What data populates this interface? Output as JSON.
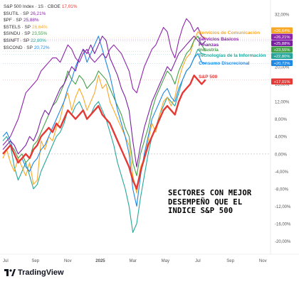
{
  "legend": [
    {
      "label": "S&P 500 Index · 1S · CBOE",
      "value": "17,01%",
      "color": "#e53935"
    },
    {
      "label": "$SUTIL · SP",
      "value": "26,21%",
      "color": "#8e24aa"
    },
    {
      "label": "$PF · SP",
      "value": "25,88%",
      "color": "#7b1fa2"
    },
    {
      "label": "$STELS · SP",
      "value": "26,64%",
      "color": "#f9a825"
    },
    {
      "label": "$SINDU · SP",
      "value": "23,55%",
      "color": "#43a047"
    },
    {
      "label": "$SINFT · SP",
      "value": "22,80%",
      "color": "#26a69a"
    },
    {
      "label": "$SCOND · SP",
      "value": "20,72%",
      "color": "#1e88e5"
    }
  ],
  "annotation": [
    "SECTORES CON MEJOR",
    "DESEMPEÑO QUE EL",
    "INDICE S&P 500"
  ],
  "brand": "TradingView",
  "chart_data": {
    "type": "line",
    "x_ticks": [
      "Jul",
      "Sep",
      "Nov",
      "2025",
      "Mar",
      "May",
      "Jul",
      "Sep",
      "Nov"
    ],
    "y_ticks": [
      "32,00%",
      "28,00%",
      "24,00%",
      "20,00%",
      "16,00%",
      "12,00%",
      "8,00%",
      "4,00%",
      "0,00%",
      "-4,00%",
      "-8,00%",
      "-12,00%",
      "-16,00%",
      "-20,00%"
    ],
    "ylim": [
      -22,
      33
    ],
    "xlim": [
      0,
      70
    ],
    "x_tick_positions": [
      0,
      8.5,
      17,
      25.5,
      34,
      42.5,
      51,
      59.5,
      68
    ],
    "series": [
      {
        "name": "Servicios de Comunicación",
        "badge": "+26,64%",
        "color": "#f9a825",
        "x": [
          0,
          1,
          2,
          3,
          4,
          5,
          6,
          7,
          8,
          9,
          10,
          11,
          12,
          13,
          14,
          15,
          16,
          17,
          18,
          19,
          20,
          21,
          22,
          23,
          24,
          25,
          26,
          27,
          28,
          29,
          30,
          31,
          32,
          33,
          34,
          35,
          36,
          37,
          38,
          39,
          40,
          41,
          42,
          43,
          44,
          45,
          46,
          47,
          48,
          49,
          50,
          51,
          52,
          53
        ],
        "y": [
          -1,
          1,
          -2,
          -4,
          -1,
          -3,
          -5,
          -2,
          -7,
          -6,
          3,
          1,
          4,
          3,
          6,
          8,
          12,
          14,
          10,
          13,
          15,
          13,
          10,
          12,
          14,
          18,
          15,
          16,
          12,
          10,
          8,
          6,
          4,
          2,
          -5,
          -9,
          -3,
          -1,
          3,
          7,
          5,
          9,
          12,
          13,
          11,
          13,
          17,
          20,
          22,
          23,
          26,
          28,
          27,
          26.64
        ]
      },
      {
        "name": "Servicios Básicos",
        "badge": "+26,21%",
        "color": "#8e24aa",
        "x": [
          0,
          1,
          2,
          3,
          4,
          5,
          6,
          7,
          8,
          9,
          10,
          11,
          12,
          13,
          14,
          15,
          16,
          17,
          18,
          19,
          20,
          21,
          22,
          23,
          24,
          25,
          26,
          27,
          28,
          29,
          30,
          31,
          32,
          33,
          34,
          35,
          36,
          37,
          38,
          39,
          40,
          41,
          42,
          43,
          44,
          45,
          46,
          47,
          48,
          49,
          50,
          51,
          52,
          53
        ],
        "y": [
          2,
          3,
          4,
          6,
          8,
          11,
          14,
          15,
          16,
          17,
          19,
          20,
          21,
          22,
          22,
          21,
          23,
          25,
          24,
          22,
          21,
          23,
          24,
          22,
          21,
          22,
          23,
          22,
          24,
          25,
          24,
          23,
          21,
          19,
          15,
          14,
          17,
          20,
          22,
          24,
          25,
          27,
          29,
          28,
          24,
          22,
          26,
          29,
          31,
          30,
          28,
          29,
          27,
          26.21
        ]
      },
      {
        "name": "Finanzas",
        "badge": "+25,88%",
        "color": "#7b1fa2",
        "x": [
          0,
          1,
          2,
          3,
          4,
          5,
          6,
          7,
          8,
          9,
          10,
          11,
          12,
          13,
          14,
          15,
          16,
          17,
          18,
          19,
          20,
          21,
          22,
          23,
          24,
          25,
          26,
          27,
          28,
          29,
          30,
          31,
          32,
          33,
          34,
          35,
          36,
          37,
          38,
          39,
          40,
          41,
          42,
          43,
          44,
          45,
          46,
          47,
          48,
          49,
          50,
          51,
          52,
          53
        ],
        "y": [
          1,
          2,
          3,
          2,
          0,
          1,
          2,
          4,
          3,
          5,
          8,
          10,
          9,
          11,
          13,
          15,
          16,
          18,
          20,
          19,
          22,
          24,
          23,
          25,
          23,
          25,
          27,
          26,
          22,
          20,
          18,
          15,
          13,
          10,
          3,
          -3,
          2,
          6,
          9,
          12,
          14,
          16,
          18,
          20,
          19,
          21,
          23,
          24,
          25,
          26,
          27,
          26,
          25,
          25.88
        ]
      },
      {
        "name": "Industria",
        "badge": "+23,55%",
        "color": "#43a047",
        "x": [
          0,
          1,
          2,
          3,
          4,
          5,
          6,
          7,
          8,
          9,
          10,
          11,
          12,
          13,
          14,
          15,
          16,
          17,
          18,
          19,
          20,
          21,
          22,
          23,
          24,
          25,
          26,
          27,
          28,
          29,
          30,
          31,
          32,
          33,
          34,
          35,
          36,
          37,
          38,
          39,
          40,
          41,
          42,
          43,
          44,
          45,
          46,
          47,
          48,
          49,
          50,
          51,
          52,
          53
        ],
        "y": [
          0,
          1,
          2,
          1,
          -1,
          0,
          -2,
          -1,
          2,
          3,
          5,
          7,
          9,
          11,
          12,
          14,
          16,
          19,
          17,
          16,
          18,
          17,
          15,
          16,
          17,
          19,
          18,
          17,
          15,
          13,
          11,
          9,
          6,
          4,
          -2,
          -5,
          0,
          3,
          6,
          10,
          13,
          15,
          17,
          19,
          18,
          16,
          19,
          21,
          23,
          24,
          26,
          27,
          25,
          23.55
        ]
      },
      {
        "name": "Tecnologías de la Información",
        "badge": "+22,80%",
        "color": "#26a69a",
        "x": [
          0,
          1,
          2,
          3,
          4,
          5,
          6,
          7,
          8,
          9,
          10,
          11,
          12,
          13,
          14,
          15,
          16,
          17,
          18,
          19,
          20,
          21,
          22,
          23,
          24,
          25,
          26,
          27,
          28,
          29,
          30,
          31,
          32,
          33,
          34,
          35,
          36,
          37,
          38,
          39,
          40,
          41,
          42,
          43,
          44,
          45,
          46,
          47,
          48,
          49,
          50,
          51,
          52,
          53
        ],
        "y": [
          3,
          4,
          2,
          -3,
          -6,
          -4,
          -2,
          -5,
          -8,
          -7,
          -4,
          -2,
          0,
          2,
          4,
          5,
          7,
          10,
          9,
          11,
          12,
          10,
          8,
          9,
          11,
          12,
          10,
          8,
          5,
          2,
          -2,
          -5,
          -8,
          -12,
          -18,
          -16,
          -10,
          -5,
          0,
          4,
          6,
          9,
          11,
          13,
          12,
          11,
          14,
          17,
          19,
          20,
          22,
          24,
          23,
          22.8
        ]
      },
      {
        "name": "Consumo Discrecional",
        "badge": "+20,72%",
        "color": "#1e88e5",
        "x": [
          0,
          1,
          2,
          3,
          4,
          5,
          6,
          7,
          8,
          9,
          10,
          11,
          12,
          13,
          14,
          15,
          16,
          17,
          18,
          19,
          20,
          21,
          22,
          23,
          24,
          25,
          26,
          27,
          28,
          29,
          30,
          31,
          32,
          33,
          34,
          35,
          36,
          37,
          38,
          39,
          40,
          41,
          42,
          43,
          44,
          45,
          46,
          47,
          48,
          49,
          50,
          51,
          52,
          53
        ],
        "y": [
          4,
          5,
          3,
          0,
          -2,
          -1,
          -3,
          -4,
          -2,
          -1,
          1,
          2,
          4,
          6,
          8,
          10,
          12,
          15,
          17,
          20,
          22,
          24,
          21,
          23,
          25,
          27,
          24,
          21,
          18,
          14,
          10,
          7,
          4,
          0,
          -8,
          -12,
          -5,
          0,
          4,
          8,
          10,
          12,
          14,
          15,
          13,
          12,
          15,
          17,
          19,
          20,
          22,
          23,
          21,
          20.72
        ]
      },
      {
        "name": "S&P 500",
        "badge": "+17,01%",
        "color": "#e53935",
        "x": [
          0,
          1,
          2,
          3,
          4,
          5,
          6,
          7,
          8,
          9,
          10,
          11,
          12,
          13,
          14,
          15,
          16,
          17,
          18,
          19,
          20,
          21,
          22,
          23,
          24,
          25,
          26,
          27,
          28,
          29,
          30,
          31,
          32,
          33,
          34,
          35,
          36,
          37,
          38,
          39,
          40,
          41,
          42,
          43,
          44,
          45,
          46,
          47,
          48,
          49,
          50,
          51,
          52,
          53
        ],
        "y": [
          0,
          1,
          2,
          0,
          -2,
          -1,
          0,
          -1,
          1,
          2,
          4,
          5,
          6,
          5,
          7,
          6,
          8,
          10,
          9,
          8,
          9,
          10,
          8,
          9,
          10,
          11,
          9,
          8,
          7,
          5,
          3,
          1,
          -1,
          -3,
          -6,
          -8,
          -4,
          -1,
          2,
          4,
          6,
          8,
          10,
          11,
          10,
          9,
          12,
          14,
          15,
          16,
          18,
          17,
          16,
          17.01
        ]
      }
    ]
  }
}
